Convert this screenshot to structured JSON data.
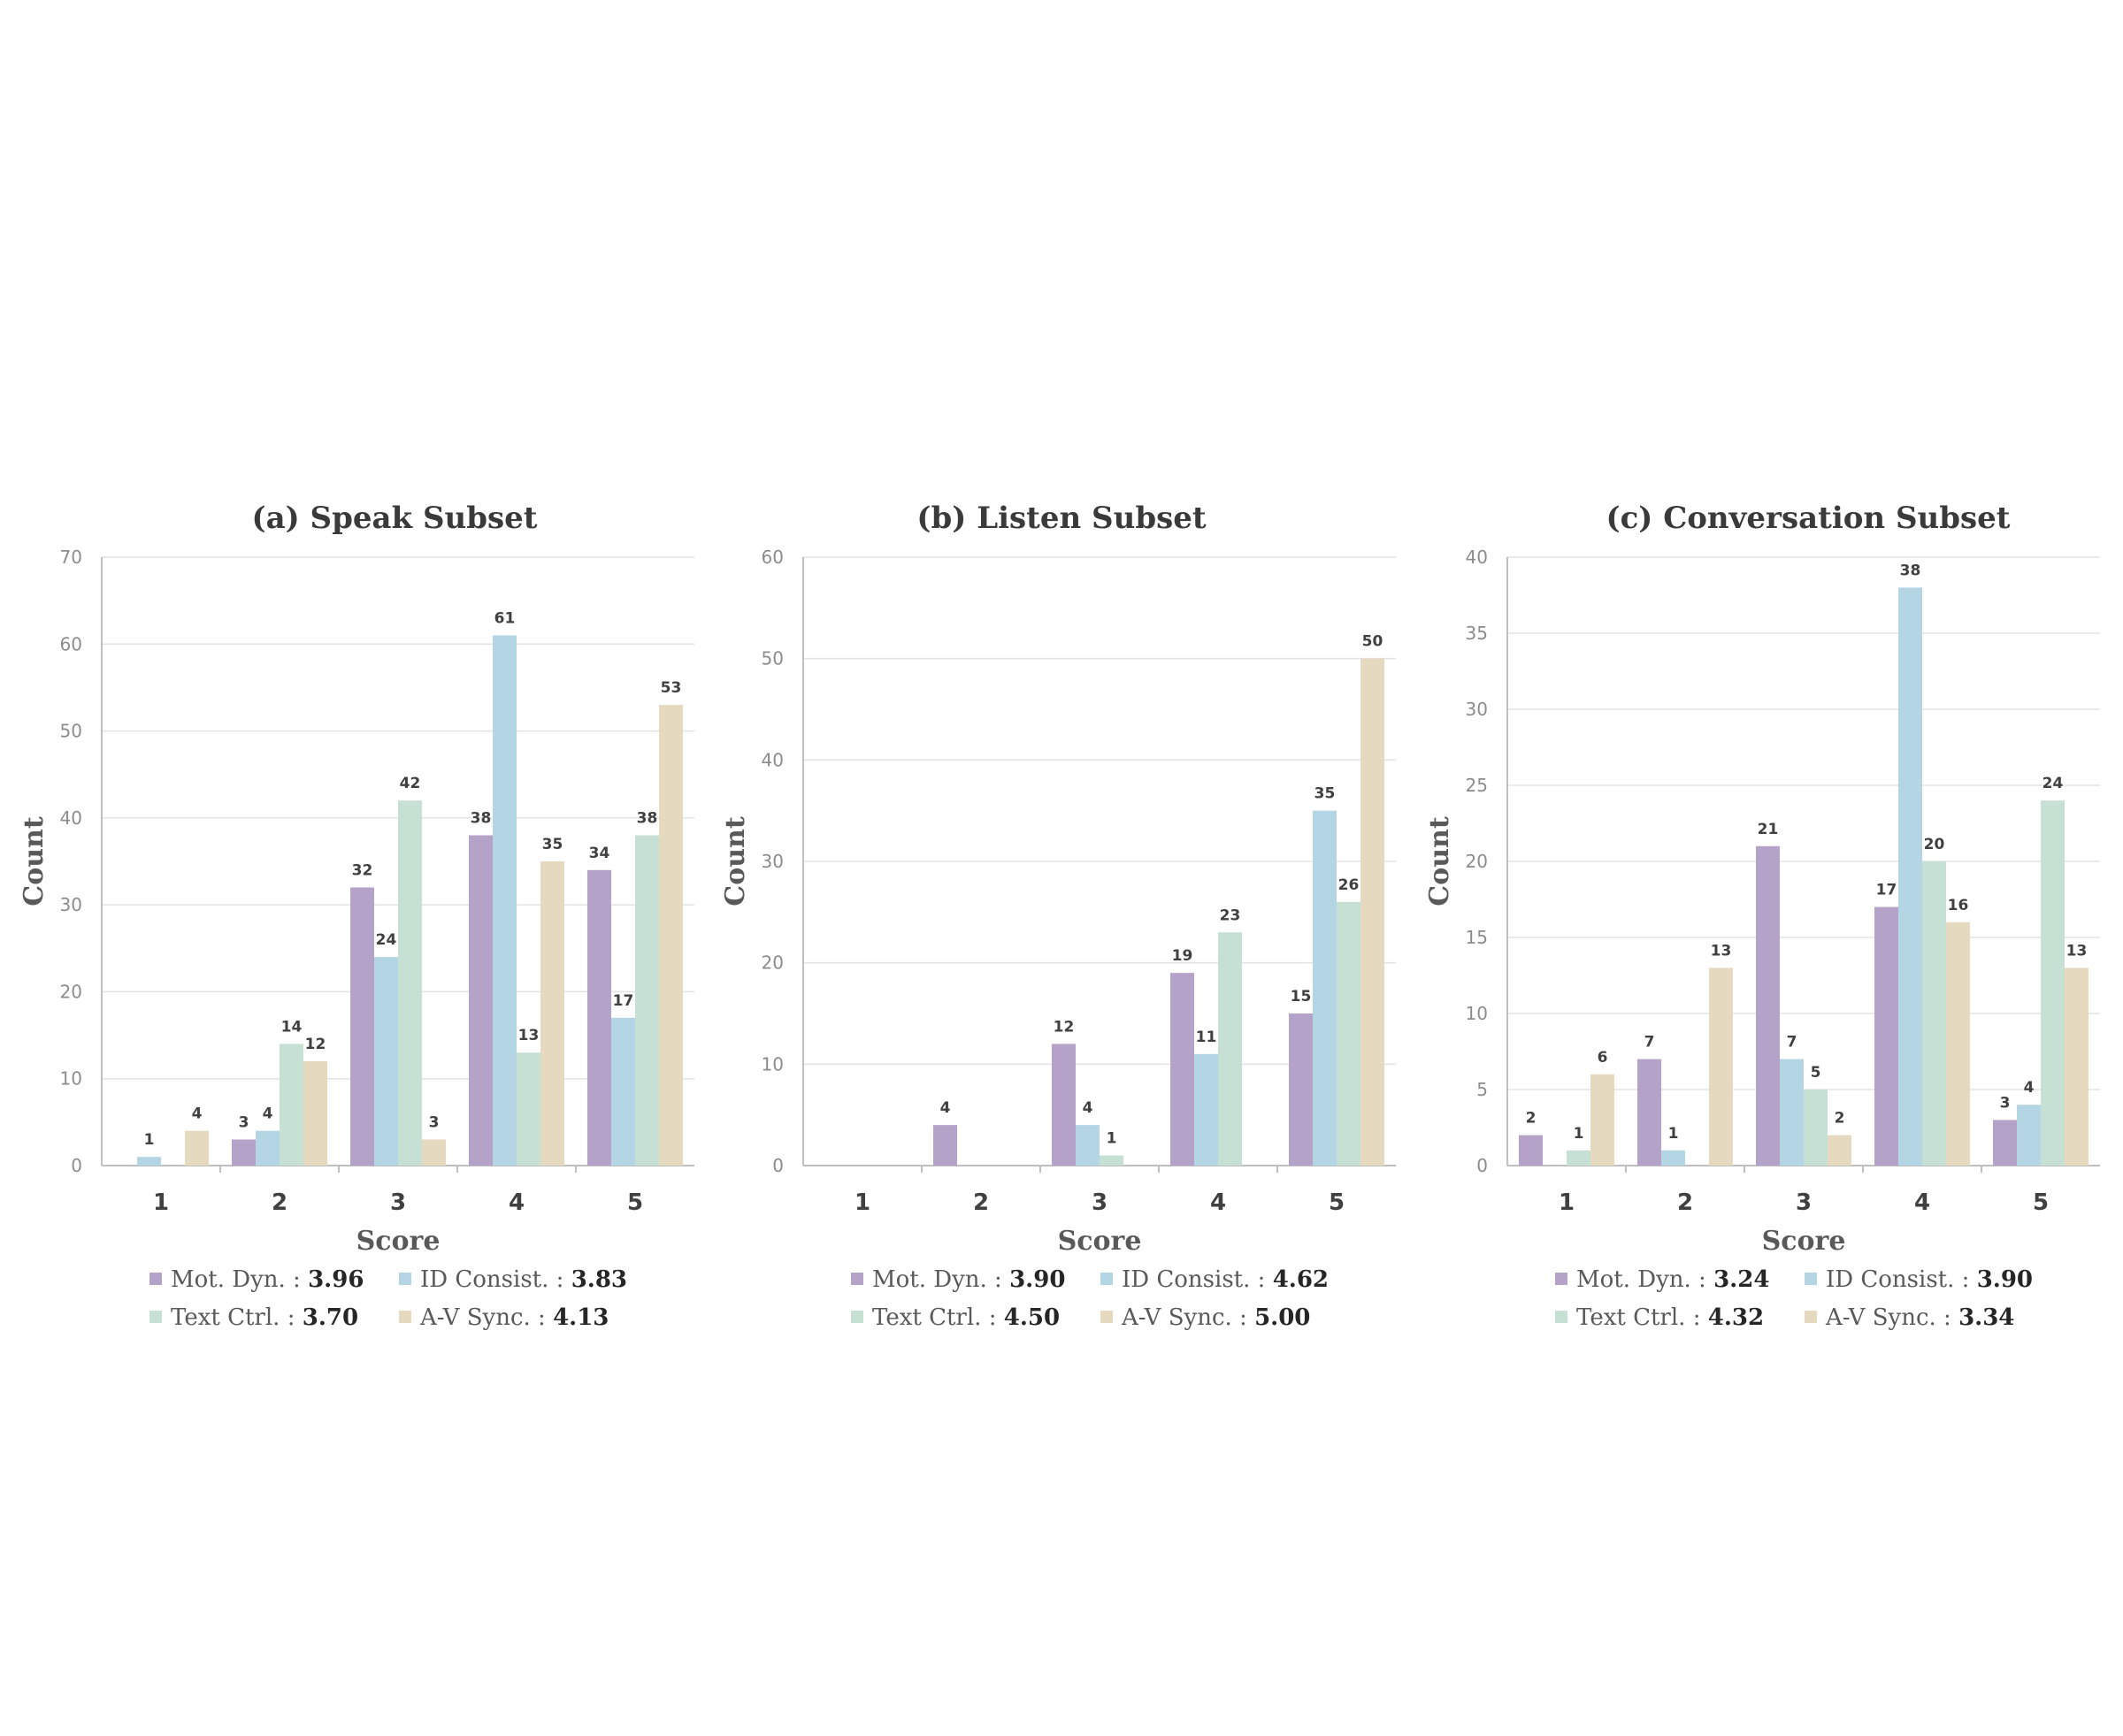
{
  "colors": {
    "Mot. Dyn.": "#b4a2c9",
    "ID Consist.": "#b4d5e4",
    "Text Ctrl.": "#c7e0d4",
    "A-V Sync.": "#e5d9bf"
  },
  "chart_data": [
    {
      "type": "bar",
      "title": "(a) Speak Subset",
      "xlabel": "Score",
      "ylabel": "Count",
      "categories": [
        "1",
        "2",
        "3",
        "4",
        "5"
      ],
      "ylim": [
        0,
        70
      ],
      "yticks": [
        0,
        10,
        20,
        30,
        40,
        50,
        60,
        70
      ],
      "grid": true,
      "legend_position": "bottom",
      "series": [
        {
          "name": "Mot. Dyn.",
          "values": [
            0,
            3,
            32,
            38,
            34
          ],
          "legend_value": "3.96"
        },
        {
          "name": "ID Consist.",
          "values": [
            1,
            4,
            24,
            61,
            17
          ],
          "legend_value": "3.83"
        },
        {
          "name": "Text Ctrl.",
          "values": [
            0,
            14,
            42,
            13,
            38
          ],
          "legend_value": "3.70"
        },
        {
          "name": "A-V Sync.",
          "values": [
            4,
            12,
            3,
            35,
            53
          ],
          "legend_value": "4.13"
        }
      ]
    },
    {
      "type": "bar",
      "title": "(b) Listen Subset",
      "xlabel": "Score",
      "ylabel": "Count",
      "categories": [
        "1",
        "2",
        "3",
        "4",
        "5"
      ],
      "ylim": [
        0,
        60
      ],
      "yticks": [
        0,
        10,
        20,
        30,
        40,
        50,
        60
      ],
      "grid": true,
      "legend_position": "bottom",
      "series": [
        {
          "name": "Mot. Dyn.",
          "values": [
            0,
            4,
            12,
            19,
            15
          ],
          "legend_value": "3.90"
        },
        {
          "name": "ID Consist.",
          "values": [
            0,
            0,
            4,
            11,
            35
          ],
          "legend_value": "4.62"
        },
        {
          "name": "Text Ctrl.",
          "values": [
            0,
            0,
            1,
            23,
            26
          ],
          "legend_value": "4.50"
        },
        {
          "name": "A-V Sync.",
          "values": [
            0,
            0,
            0,
            0,
            50
          ],
          "legend_value": "5.00"
        }
      ]
    },
    {
      "type": "bar",
      "title": "(c) Conversation Subset",
      "xlabel": "Score",
      "ylabel": "Count",
      "categories": [
        "1",
        "2",
        "3",
        "4",
        "5"
      ],
      "ylim": [
        0,
        40
      ],
      "yticks": [
        0,
        5,
        10,
        15,
        20,
        25,
        30,
        35,
        40
      ],
      "grid": true,
      "legend_position": "bottom",
      "series": [
        {
          "name": "Mot. Dyn.",
          "values": [
            2,
            7,
            21,
            17,
            3
          ],
          "legend_value": "3.24"
        },
        {
          "name": "ID Consist.",
          "values": [
            0,
            1,
            7,
            38,
            4
          ],
          "legend_value": "3.90"
        },
        {
          "name": "Text Ctrl.",
          "values": [
            1,
            0,
            5,
            20,
            24
          ],
          "legend_value": "4.32"
        },
        {
          "name": "A-V Sync.",
          "values": [
            6,
            13,
            2,
            16,
            13
          ],
          "legend_value": "3.34"
        }
      ]
    }
  ]
}
